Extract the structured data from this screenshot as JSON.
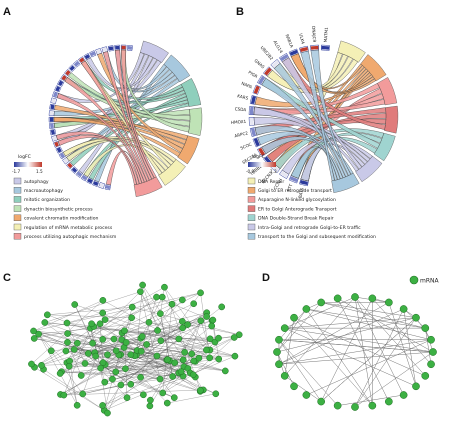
{
  "panels": {
    "a": {
      "label": "A",
      "genes": [
        "",
        "",
        "",
        "",
        "",
        "",
        "",
        "",
        "",
        "",
        "",
        "",
        "",
        "",
        "",
        "",
        "",
        "",
        "",
        "",
        "",
        "",
        "",
        "",
        "",
        "",
        "",
        "",
        "",
        "",
        "",
        "",
        "",
        "",
        ""
      ],
      "logfc_title": "logFC",
      "logfc_min": "-1.7",
      "logfc_max": "1.5",
      "legend": [
        {
          "label": "autophagy",
          "color": "#c9c9e8"
        },
        {
          "label": "macroautophagy",
          "color": "#a7c8de"
        },
        {
          "label": "mitotic organization",
          "color": "#8fcfbc"
        },
        {
          "label": "dynactin biosynthetic process",
          "color": "#bfe3b6"
        },
        {
          "label": "covalent chromatin modification",
          "color": "#f0a96f"
        },
        {
          "label": "regulation of mRNA metabolic process",
          "color": "#f4f0b6"
        },
        {
          "label": "process utilizing autophagic mechanism",
          "color": "#f29b9b"
        }
      ]
    },
    "b": {
      "label": "B",
      "genes": [
        "BAT5",
        "PTT",
        "CCNH",
        "BECN2",
        "TUBB2A",
        "SEC23A",
        "SCOC",
        "ARPC2",
        "HMOX1",
        "CSDA",
        "KARS",
        "NAPA",
        "PIGR",
        "GNAS",
        "UBE2B2",
        "ALG14",
        "RAB1A",
        "ULK4",
        "DNAJC9",
        "MATM1"
      ],
      "logfc_title": "logFC",
      "logfc_min": "-0.9",
      "logfc_max": "1.3",
      "legend": [
        {
          "label": "DNA Repair",
          "color": "#f4f0b6"
        },
        {
          "label": "Golgi to ER retrograde transport",
          "color": "#f0a96f"
        },
        {
          "label": "Asparagine N-linked glycosylation",
          "color": "#f29b9b"
        },
        {
          "label": "ER to Golgi Anterograde Transport",
          "color": "#e07b7b"
        },
        {
          "label": "DNA Double-Strand Break Repair",
          "color": "#9fd4d0"
        },
        {
          "label": "Intra-Golgi and retrograde Golgi-to-ER traffic",
          "color": "#c9c9e8"
        },
        {
          "label": "transport to the Golgi and subsequent modification",
          "color": "#a7c8de"
        }
      ]
    },
    "c": {
      "label": "C"
    },
    "d": {
      "label": "D",
      "legend_label": "mRNA"
    }
  }
}
